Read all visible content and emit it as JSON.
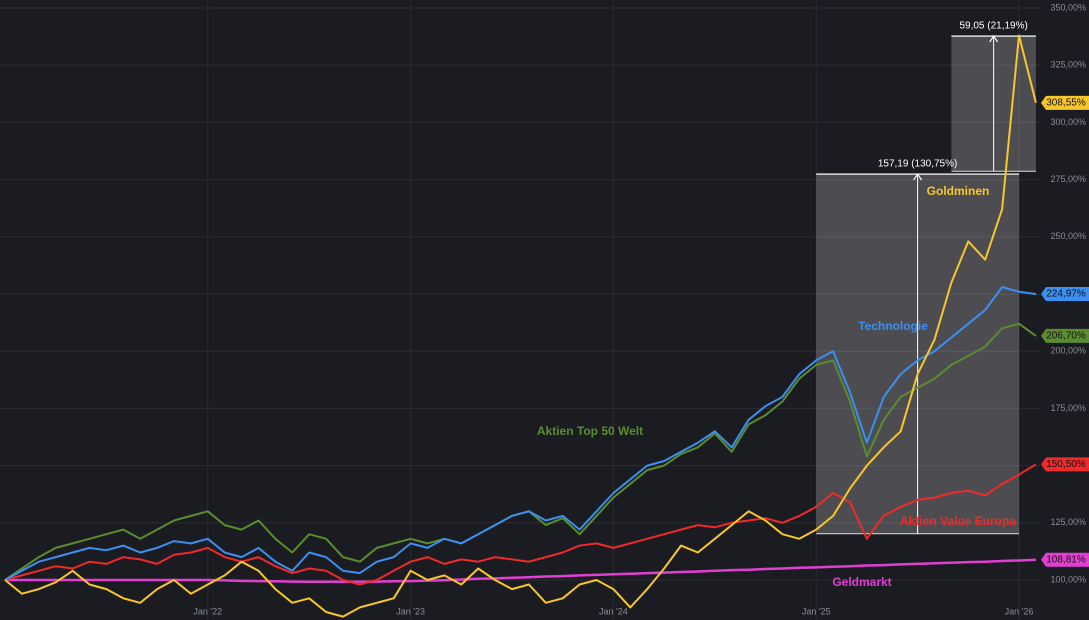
{
  "chart_data": {
    "type": "line",
    "categories": [
      null,
      null,
      null,
      null,
      null,
      null,
      null,
      null,
      null,
      null,
      null,
      null,
      "Jan '22",
      null,
      null,
      null,
      null,
      null,
      null,
      null,
      null,
      null,
      null,
      null,
      "Jan '23",
      null,
      null,
      null,
      null,
      null,
      null,
      null,
      null,
      null,
      null,
      null,
      "Jan '24",
      null,
      null,
      null,
      null,
      null,
      null,
      null,
      null,
      null,
      null,
      null,
      "Jan '25",
      null,
      null,
      null,
      null,
      null,
      null,
      null,
      null,
      null,
      null,
      null,
      "Jan '26",
      null
    ],
    "ylim": [
      82.5,
      353.5
    ],
    "yticks": [
      {
        "value": 100,
        "label": "100,00%"
      },
      {
        "value": 125,
        "label": "125,00%"
      },
      {
        "value": 150,
        "label": "150,00%"
      },
      {
        "value": 175,
        "label": "175,00%"
      },
      {
        "value": 200,
        "label": "200,00%"
      },
      {
        "value": 225,
        "label": "225,00%"
      },
      {
        "value": 250,
        "label": "250,00%"
      },
      {
        "value": 275,
        "label": "275,00%"
      },
      {
        "value": 300,
        "label": "300,00%"
      },
      {
        "value": 325,
        "label": "325,00%"
      },
      {
        "value": 350,
        "label": "350,00%"
      }
    ],
    "grid": true,
    "series": [
      {
        "name": "Geldmarkt",
        "color": "#e03fd2",
        "end_label": "108,81%",
        "values": [
          100,
          100,
          100,
          100,
          100,
          100,
          100,
          100,
          100,
          100,
          100,
          100,
          100,
          99.8,
          99.6,
          99.5,
          99.4,
          99.3,
          99.2,
          99.2,
          99.2,
          99.2,
          99.3,
          99.4,
          99.5,
          99.7,
          99.9,
          100.2,
          100.5,
          100.7,
          101.0,
          101.2,
          101.5,
          101.7,
          102.0,
          102.2,
          102.5,
          102.7,
          103.0,
          103.2,
          103.5,
          103.7,
          104.0,
          104.3,
          104.5,
          104.8,
          105.0,
          105.3,
          105.5,
          105.8,
          106.0,
          106.3,
          106.5,
          106.8,
          107.0,
          107.3,
          107.5,
          107.8,
          108.0,
          108.3,
          108.5,
          108.81
        ]
      },
      {
        "name": "Aktien Value Europa",
        "color": "#ee2a2a",
        "end_label": "150,50%",
        "values": [
          100,
          102,
          104,
          106,
          105,
          108,
          107,
          110,
          109,
          107,
          111,
          112,
          114,
          110,
          108,
          110,
          106,
          103,
          105,
          104,
          100,
          98,
          100,
          104,
          108,
          110,
          107,
          109,
          108,
          110,
          109,
          108,
          110,
          112,
          115,
          116,
          114,
          116,
          118,
          120,
          122,
          124,
          123,
          125,
          126,
          127,
          125,
          128,
          132,
          138,
          134,
          118,
          128,
          132,
          135,
          136,
          138,
          139,
          137,
          142,
          146,
          150.5
        ]
      },
      {
        "name": "Aktien Top 50 Welt",
        "color": "#5b8c2f",
        "end_label": "206,70%",
        "values": [
          100,
          105,
          110,
          114,
          116,
          118,
          120,
          122,
          118,
          122,
          126,
          128,
          130,
          124,
          122,
          126,
          118,
          112,
          120,
          118,
          110,
          108,
          114,
          116,
          118,
          116,
          118,
          116,
          120,
          124,
          128,
          130,
          124,
          127,
          120,
          128,
          136,
          142,
          148,
          150,
          155,
          158,
          164,
          156,
          168,
          172,
          178,
          188,
          194,
          196,
          178,
          154,
          170,
          180,
          184,
          188,
          194,
          198,
          202,
          210,
          212,
          206.7
        ]
      },
      {
        "name": "Technologie",
        "color": "#3b8ff0",
        "end_label": "224,97%",
        "values": [
          100,
          104,
          108,
          110,
          112,
          114,
          113,
          115,
          112,
          114,
          117,
          116,
          118,
          112,
          110,
          114,
          108,
          104,
          112,
          110,
          104,
          103,
          108,
          110,
          116,
          114,
          118,
          116,
          120,
          124,
          128,
          130,
          126,
          128,
          122,
          130,
          138,
          144,
          150,
          152,
          156,
          160,
          165,
          158,
          170,
          176,
          180,
          190,
          196,
          200,
          182,
          160,
          180,
          190,
          196,
          200,
          206,
          212,
          218,
          228,
          226,
          224.97
        ]
      },
      {
        "name": "Goldminen",
        "color": "#f7c62c",
        "end_label": "308,55%",
        "values": [
          100,
          94,
          96,
          99,
          104,
          98,
          96,
          92,
          90,
          96,
          100,
          94,
          98,
          102,
          108,
          104,
          96,
          90,
          92,
          86,
          84,
          88,
          90,
          92,
          104,
          100,
          102,
          98,
          105,
          100,
          96,
          98,
          90,
          92,
          98,
          100,
          96,
          88,
          96,
          105,
          115,
          112,
          118,
          124,
          130,
          126,
          120,
          118,
          122,
          128,
          140,
          150,
          158,
          165,
          190,
          205,
          230,
          248,
          240,
          262,
          338,
          308.55
        ]
      }
    ],
    "annotations": [
      {
        "label": "157,19 (130,75%)",
        "start": 48,
        "end": 60,
        "from": 120.22,
        "to": 277.41
      },
      {
        "label": "59,05 (21,19%)",
        "start": 56,
        "end": 61,
        "from": 278.67,
        "to": 337.72
      }
    ]
  }
}
